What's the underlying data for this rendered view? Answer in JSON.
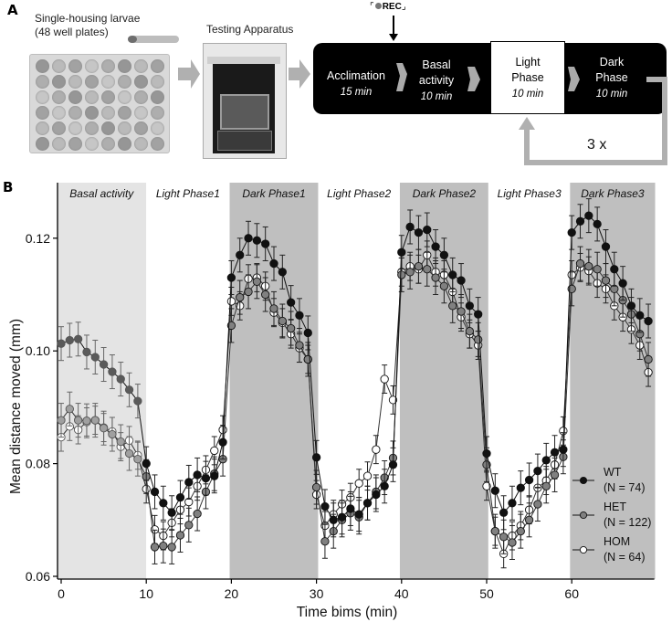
{
  "panel_a": {
    "label": "A",
    "housing_caption_line1": "Single-housing larvae",
    "housing_caption_line2": "(48 well plates)",
    "apparatus_caption": "Testing Apparatus",
    "rec_label": "REC",
    "steps": [
      {
        "name": "Acclimation",
        "duration": "15 min"
      },
      {
        "name_line1": "Basal",
        "name_line2": "activity",
        "duration": "10 min"
      },
      {
        "name_line1": "Light",
        "name_line2": "Phase",
        "duration": "10 min"
      },
      {
        "name_line1": "Dark",
        "name_line2": "Phase",
        "duration": "10 min"
      }
    ],
    "repeat_label": "3 x"
  },
  "panel_b": {
    "label": "B"
  },
  "chart_data": {
    "type": "line",
    "title": "",
    "xlabel": "Time bims (min)",
    "ylabel": "Mean distance moved (mm)",
    "xlim": [
      -1,
      70
    ],
    "ylim": [
      0.06,
      0.13
    ],
    "xticks": [
      0,
      10,
      20,
      30,
      40,
      50,
      60
    ],
    "yticks": [
      "0.06",
      "0.08",
      "0.10",
      "0.12"
    ],
    "ytick_values": [
      0.06,
      0.08,
      0.1,
      0.12
    ],
    "legend_position": "bottom-right",
    "phases": [
      {
        "label": "Basal activity",
        "start": -0.5,
        "end": 10,
        "shade": "#e4e4e4"
      },
      {
        "label": "Light Phase1",
        "start": 10,
        "end": 19.8,
        "shade": "#ffffff"
      },
      {
        "label": "Dark Phase1",
        "start": 19.8,
        "end": 30.2,
        "shade": "#bfbfbf"
      },
      {
        "label": "Light Phase2",
        "start": 30.2,
        "end": 39.8,
        "shade": "#ffffff"
      },
      {
        "label": "Dark Phase2",
        "start": 39.8,
        "end": 50.2,
        "shade": "#bfbfbf"
      },
      {
        "label": "Light Phase3",
        "start": 50.2,
        "end": 59.8,
        "shade": "#ffffff"
      },
      {
        "label": "Dark Phase3",
        "start": 59.8,
        "end": 69.8,
        "shade": "#bfbfbf"
      }
    ],
    "series": [
      {
        "name": "WT",
        "n_label": "(N = 74)",
        "marker": "filled-black",
        "color": "#000000",
        "x": [
          0,
          1,
          2,
          3,
          4,
          5,
          6,
          7,
          8,
          9,
          10,
          11,
          12,
          13,
          14,
          15,
          16,
          17,
          18,
          19,
          20,
          21,
          22,
          23,
          24,
          25,
          26,
          27,
          28,
          29,
          30,
          31,
          32,
          33,
          34,
          35,
          36,
          37,
          38,
          39,
          40,
          41,
          42,
          43,
          44,
          45,
          46,
          47,
          48,
          49,
          50,
          51,
          52,
          53,
          54,
          55,
          56,
          57,
          58,
          59,
          60,
          61,
          62,
          63,
          64,
          65,
          66,
          67,
          68,
          69
        ],
        "y": [
          0.1013,
          0.1019,
          0.1021,
          0.0998,
          0.0989,
          0.0976,
          0.0963,
          0.095,
          0.0931,
          0.0911,
          0.08,
          0.075,
          0.073,
          0.0713,
          0.074,
          0.0767,
          0.078,
          0.0774,
          0.0778,
          0.0838,
          0.113,
          0.117,
          0.12,
          0.1196,
          0.119,
          0.1155,
          0.114,
          0.1086,
          0.1063,
          0.1032,
          0.0811,
          0.0724,
          0.07,
          0.0705,
          0.072,
          0.071,
          0.073,
          0.0745,
          0.076,
          0.0798,
          0.1175,
          0.122,
          0.121,
          0.1215,
          0.1185,
          0.117,
          0.1135,
          0.1125,
          0.108,
          0.1065,
          0.0818,
          0.0752,
          0.0713,
          0.073,
          0.0757,
          0.0771,
          0.0787,
          0.0806,
          0.082,
          0.0825,
          0.121,
          0.123,
          0.124,
          0.1225,
          0.1185,
          0.1145,
          0.112,
          0.108,
          0.1063,
          0.1053
        ],
        "err": 0.003
      },
      {
        "name": "HET",
        "n_label": "(N = 122)",
        "marker": "filled-gray",
        "color": "#808080",
        "x": [
          0,
          1,
          2,
          3,
          4,
          5,
          6,
          7,
          8,
          9,
          10,
          11,
          12,
          13,
          14,
          15,
          16,
          17,
          18,
          19,
          20,
          21,
          22,
          23,
          24,
          25,
          26,
          27,
          28,
          29,
          30,
          31,
          32,
          33,
          34,
          35,
          36,
          37,
          38,
          39,
          40,
          41,
          42,
          43,
          44,
          45,
          46,
          47,
          48,
          49,
          50,
          51,
          52,
          53,
          54,
          55,
          56,
          57,
          58,
          59,
          60,
          61,
          62,
          63,
          64,
          65,
          66,
          67,
          68,
          69
        ],
        "y": [
          0.0877,
          0.0897,
          0.0877,
          0.0876,
          0.0877,
          0.0863,
          0.0852,
          0.0839,
          0.0818,
          0.0808,
          0.0777,
          0.0652,
          0.0654,
          0.0652,
          0.0673,
          0.0691,
          0.0711,
          0.075,
          0.0782,
          0.0808,
          0.1045,
          0.1095,
          0.1105,
          0.1123,
          0.11,
          0.1075,
          0.1053,
          0.104,
          0.101,
          0.0985,
          0.0758,
          0.0662,
          0.068,
          0.07,
          0.0712,
          0.0705,
          0.073,
          0.075,
          0.0775,
          0.081,
          0.1135,
          0.114,
          0.115,
          0.1145,
          0.113,
          0.1115,
          0.108,
          0.107,
          0.1035,
          0.102,
          0.0798,
          0.068,
          0.067,
          0.066,
          0.068,
          0.07,
          0.0728,
          0.076,
          0.078,
          0.0812,
          0.111,
          0.1155,
          0.115,
          0.1145,
          0.1125,
          0.111,
          0.109,
          0.1065,
          0.103,
          0.0985
        ],
        "err": 0.003
      },
      {
        "name": "HOM",
        "n_label": "(N = 64)",
        "marker": "open-circle",
        "color": "#ffffff",
        "x": [
          0,
          1,
          2,
          3,
          4,
          5,
          6,
          7,
          8,
          9,
          10,
          11,
          12,
          13,
          14,
          15,
          16,
          17,
          18,
          19,
          20,
          21,
          22,
          23,
          24,
          25,
          26,
          27,
          28,
          29,
          30,
          31,
          32,
          33,
          34,
          35,
          36,
          37,
          38,
          39,
          40,
          41,
          42,
          43,
          44,
          45,
          46,
          47,
          48,
          49,
          50,
          51,
          52,
          53,
          54,
          55,
          56,
          57,
          58,
          59,
          60,
          61,
          62,
          63,
          64,
          65,
          66,
          67,
          68,
          69
        ],
        "y": [
          0.0847,
          0.0866,
          0.086,
          0.0874,
          0.0877,
          0.0864,
          0.0857,
          0.083,
          0.0841,
          0.0815,
          0.0755,
          0.0683,
          0.0672,
          0.0695,
          0.0718,
          0.0732,
          0.076,
          0.0789,
          0.0823,
          0.086,
          0.1088,
          0.108,
          0.1128,
          0.113,
          0.1115,
          0.1068,
          0.105,
          0.103,
          0.1005,
          0.0985,
          0.0745,
          0.069,
          0.071,
          0.0728,
          0.074,
          0.0765,
          0.0778,
          0.0825,
          0.095,
          0.0913,
          0.114,
          0.115,
          0.1145,
          0.117,
          0.114,
          0.1135,
          0.1105,
          0.106,
          0.103,
          0.101,
          0.076,
          0.068,
          0.064,
          0.0672,
          0.069,
          0.0718,
          0.0757,
          0.077,
          0.0798,
          0.0858,
          0.1135,
          0.1148,
          0.1142,
          0.112,
          0.111,
          0.108,
          0.106,
          0.1038,
          0.101,
          0.0962
        ],
        "err": 0.0025
      }
    ]
  }
}
